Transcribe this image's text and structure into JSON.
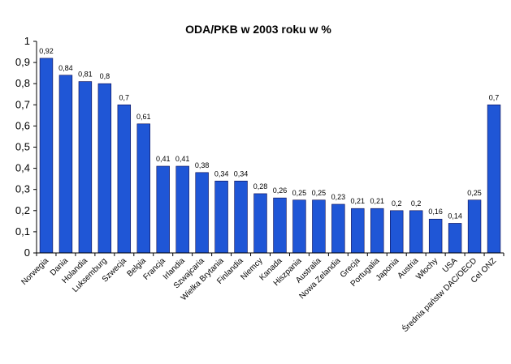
{
  "chart_data": {
    "type": "bar",
    "title": "ODA/PKB  w 2003 roku w %",
    "xlabel": "",
    "ylabel": "",
    "ylim": [
      0,
      1
    ],
    "yticks": [
      "0",
      "0,1",
      "0,2",
      "0,3",
      "0,4",
      "0,5",
      "0,6",
      "0,7",
      "0,8",
      "0,9",
      "1"
    ],
    "categories": [
      "Norwegia",
      "Dania",
      "Holandia",
      "Luksemburg",
      "Szwecja",
      "Belgia",
      "Francja",
      "Irlandia",
      "Szwajcaria",
      "Wielka Brytania",
      "Finlandia",
      "Niemcy",
      "Kanada",
      "Hiszpania",
      "Australia",
      "Nowa Zelandia",
      "Grecja",
      "Portugalia",
      "Japonia",
      "Austria",
      "Włochy",
      "USA",
      "Średnia państw DAC/OECD",
      "Cel ONZ"
    ],
    "values": [
      0.92,
      0.84,
      0.81,
      0.8,
      0.7,
      0.61,
      0.41,
      0.41,
      0.38,
      0.34,
      0.34,
      0.28,
      0.26,
      0.25,
      0.25,
      0.23,
      0.21,
      0.21,
      0.2,
      0.2,
      0.16,
      0.14,
      0.25,
      0.7
    ],
    "value_labels": [
      "0,92",
      "0,84",
      "0,81",
      "0,8",
      "0,7",
      "0,61",
      "0,41",
      "0,41",
      "0,38",
      "0,34",
      "0,34",
      "0,28",
      "0,26",
      "0,25",
      "0,25",
      "0,23",
      "0,21",
      "0,21",
      "0,2",
      "0,2",
      "0,16",
      "0,14",
      "0,25",
      "0,7"
    ],
    "grid": false,
    "legend": "none",
    "colors": {
      "bar": "#1f56d6",
      "bar_edge": "#0a0a50",
      "axis": "#000000"
    }
  }
}
